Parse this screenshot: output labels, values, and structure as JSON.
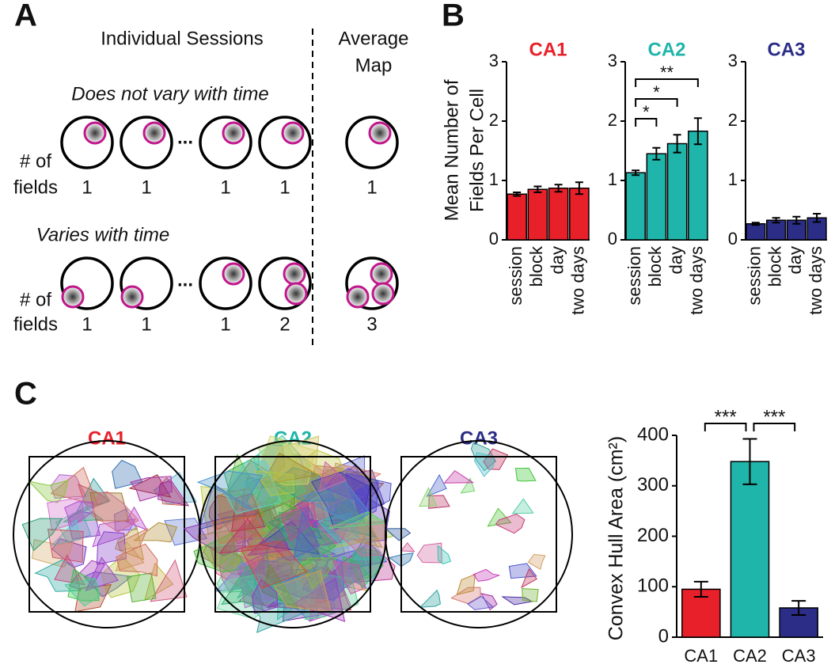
{
  "panels": {
    "a": "A",
    "b": "B",
    "c": "C"
  },
  "diagram": {
    "heading_sessions": "Individual Sessions",
    "heading_average": [
      "Average",
      "Map"
    ],
    "row1": {
      "label": "Does not vary with time",
      "fields_label": [
        "# of",
        "fields"
      ],
      "counts": [
        "1",
        "1",
        "1",
        "1"
      ],
      "average": "1",
      "ellipsis": "..."
    },
    "row2": {
      "label": "Varies with time",
      "fields_label": [
        "# of",
        "fields"
      ],
      "counts": [
        "1",
        "1",
        "1",
        "2"
      ],
      "average": "3",
      "ellipsis": "..."
    }
  },
  "arenas": [
    "CA1",
    "CA2",
    "CA3"
  ],
  "chart_data": [
    {
      "type": "bar",
      "title": "CA1",
      "ylabel": [
        "Mean Number of",
        "Fields Per Cell"
      ],
      "categories": [
        "session",
        "block",
        "day",
        "two days"
      ],
      "values": [
        0.77,
        0.85,
        0.87,
        0.87
      ],
      "errors": [
        0.03,
        0.05,
        0.06,
        0.1
      ],
      "color": "#e8202a",
      "ylim": [
        0,
        3
      ],
      "yticks": [
        0,
        1,
        2,
        3
      ]
    },
    {
      "type": "bar",
      "title": "CA2",
      "categories": [
        "session",
        "block",
        "day",
        "two days"
      ],
      "values": [
        1.13,
        1.45,
        1.62,
        1.83
      ],
      "errors": [
        0.04,
        0.1,
        0.15,
        0.22
      ],
      "color": "#1fb5aa",
      "ylim": [
        0,
        3
      ],
      "yticks": [
        0,
        1,
        2,
        3
      ],
      "annotations": [
        "*",
        "*",
        "**"
      ]
    },
    {
      "type": "bar",
      "title": "CA3",
      "categories": [
        "session",
        "block",
        "day",
        "two days"
      ],
      "values": [
        0.27,
        0.33,
        0.33,
        0.37
      ],
      "errors": [
        0.02,
        0.04,
        0.06,
        0.07
      ],
      "color": "#2b2d86",
      "ylim": [
        0,
        3
      ],
      "yticks": [
        0,
        1,
        2,
        3
      ]
    },
    {
      "type": "bar",
      "ylabel": "Convex Hull Area (cm²)",
      "categories": [
        "CA1",
        "CA2",
        "CA3"
      ],
      "values": [
        95,
        348,
        58
      ],
      "errors": [
        15,
        45,
        14
      ],
      "colors": [
        "#e8202a",
        "#1fb5aa",
        "#2b2d86"
      ],
      "ylim": [
        0,
        400
      ],
      "yticks": [
        0,
        100,
        200,
        300,
        400
      ],
      "annotations": [
        "***",
        "***"
      ]
    }
  ]
}
